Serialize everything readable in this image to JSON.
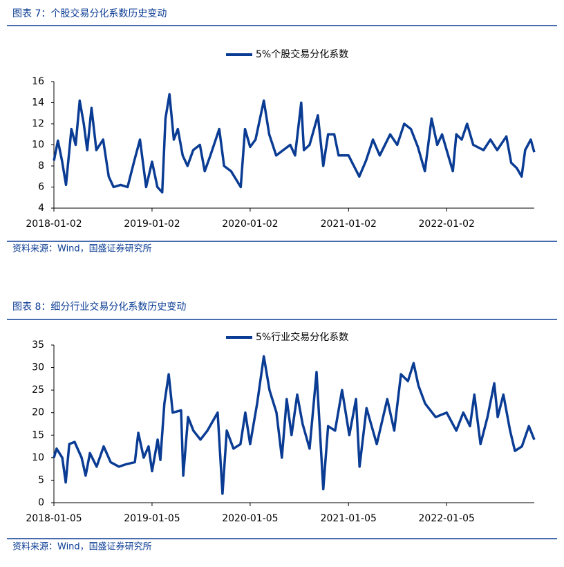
{
  "figures": [
    {
      "caption": "图表 7：个股交易分化系数历史变动",
      "source": "资料来源：Wind，国盛证券研究所"
    },
    {
      "caption": "图表 8：细分行业交易分化系数历史变动",
      "source": "资料来源：Wind，国盛证券研究所"
    }
  ],
  "chart_data": [
    {
      "type": "line",
      "x": [
        "2018-01-02",
        "2018-01-17",
        "2018-02-01",
        "2018-02-16",
        "2018-03-08",
        "2018-03-24",
        "2018-04-08",
        "2018-04-23",
        "2018-05-06",
        "2018-05-22",
        "2018-06-09",
        "2018-07-04",
        "2018-07-25",
        "2018-08-12",
        "2018-09-07",
        "2018-10-03",
        "2018-10-28",
        "2018-11-18",
        "2018-12-11",
        "2019-01-02",
        "2019-01-22",
        "2019-02-09",
        "2019-02-21",
        "2019-03-08",
        "2019-03-24",
        "2019-04-08",
        "2019-04-26",
        "2019-05-14",
        "2019-06-04",
        "2019-06-29",
        "2019-07-17",
        "2019-08-07",
        "2019-09-09",
        "2019-09-27",
        "2019-10-23",
        "2019-11-28",
        "2019-12-14",
        "2020-01-02",
        "2020-01-22",
        "2020-02-22",
        "2020-03-13",
        "2020-04-08",
        "2020-05-04",
        "2020-05-30",
        "2020-06-17",
        "2020-07-10",
        "2020-07-20",
        "2020-08-10",
        "2020-09-10",
        "2020-09-30",
        "2020-10-18",
        "2020-11-10",
        "2020-11-26",
        "2021-01-02",
        "2021-01-22",
        "2021-02-11",
        "2021-03-08",
        "2021-04-03",
        "2021-04-28",
        "2021-06-06",
        "2021-07-02",
        "2021-07-28",
        "2021-08-22",
        "2021-09-17",
        "2021-10-13",
        "2021-11-07",
        "2021-11-28",
        "2021-12-16",
        "2022-01-02",
        "2022-01-25",
        "2022-02-07",
        "2022-02-27",
        "2022-03-19",
        "2022-04-11",
        "2022-05-19",
        "2022-06-14",
        "2022-07-09",
        "2022-08-12",
        "2022-08-30",
        "2022-09-20",
        "2022-10-08",
        "2022-10-21",
        "2022-11-11",
        "2022-11-24"
      ],
      "series": [
        {
          "name": "5%个股交易分化系数",
          "color": "#0b3c94",
          "values": [
            8.5,
            10.4,
            8.5,
            6.2,
            11.5,
            10,
            14.2,
            12,
            9.5,
            13.5,
            9.5,
            10.5,
            7,
            6,
            6.2,
            6,
            8.5,
            10.5,
            6,
            8.4,
            6,
            5.5,
            12.5,
            14.8,
            10.5,
            11.5,
            9,
            8,
            9.5,
            10,
            7.5,
            9,
            11.5,
            8,
            7.5,
            6,
            11.5,
            9.8,
            10.5,
            14.2,
            11,
            9,
            9.5,
            10,
            9,
            14,
            9.5,
            10,
            12.8,
            8,
            11,
            11,
            9,
            9,
            8,
            7,
            8.5,
            10.5,
            9,
            11,
            10,
            12,
            11.5,
            9.8,
            7.5,
            12.5,
            10,
            11,
            9.5,
            7.5,
            11,
            10.5,
            12,
            10,
            9.5,
            10.5,
            9.5,
            10.8,
            8.3,
            7.8,
            7,
            9.5,
            10.5,
            9.3
          ]
        }
      ],
      "xlim": [
        "2018-01-02",
        "2022-11-24"
      ],
      "xticks": [
        "2018-01-02",
        "2019-01-02",
        "2020-01-02",
        "2021-01-02",
        "2022-01-02"
      ],
      "ylim": [
        4,
        16
      ],
      "yticks": [
        4,
        6,
        8,
        10,
        12,
        14,
        16
      ]
    },
    {
      "type": "line",
      "x": [
        "2018-01-05",
        "2018-01-15",
        "2018-02-05",
        "2018-02-18",
        "2018-03-03",
        "2018-03-23",
        "2018-04-18",
        "2018-05-03",
        "2018-05-19",
        "2018-06-13",
        "2018-07-09",
        "2018-08-04",
        "2018-09-04",
        "2018-09-29",
        "2018-11-02",
        "2018-11-15",
        "2018-12-05",
        "2018-12-23",
        "2019-01-05",
        "2019-01-26",
        "2019-02-05",
        "2019-02-20",
        "2019-03-08",
        "2019-03-23",
        "2019-04-23",
        "2019-05-01",
        "2019-05-19",
        "2019-06-08",
        "2019-07-04",
        "2019-07-30",
        "2019-09-06",
        "2019-09-24",
        "2019-10-10",
        "2019-11-04",
        "2019-11-30",
        "2019-12-18",
        "2020-01-05",
        "2020-01-31",
        "2020-02-25",
        "2020-03-17",
        "2020-04-12",
        "2020-05-02",
        "2020-05-20",
        "2020-06-07",
        "2020-06-28",
        "2020-07-18",
        "2020-08-13",
        "2020-09-08",
        "2020-10-03",
        "2020-10-21",
        "2020-11-16",
        "2020-12-12",
        "2021-01-08",
        "2021-02-02",
        "2021-02-15",
        "2021-03-13",
        "2021-04-20",
        "2021-05-29",
        "2021-06-24",
        "2021-07-19",
        "2021-08-14",
        "2021-09-04",
        "2021-09-22",
        "2021-10-17",
        "2021-11-25",
        "2022-01-05",
        "2022-02-10",
        "2022-03-08",
        "2022-04-02",
        "2022-04-18",
        "2022-05-11",
        "2022-06-06",
        "2022-07-01",
        "2022-07-14",
        "2022-08-04",
        "2022-08-29",
        "2022-09-16",
        "2022-10-12",
        "2022-11-07",
        "2022-11-27"
      ],
      "series": [
        {
          "name": "5%行业交易分化系数",
          "color": "#0b3c94",
          "values": [
            10,
            12,
            10,
            4.5,
            13,
            13.5,
            10,
            6,
            11,
            8,
            12.5,
            9,
            8,
            8.5,
            9,
            15.5,
            10,
            12.5,
            7,
            14,
            9.5,
            22,
            28.5,
            20,
            20.5,
            6,
            19,
            16,
            14,
            16,
            20,
            2,
            16,
            12,
            13,
            20,
            13,
            22,
            32.5,
            25,
            20,
            10,
            23,
            15,
            24,
            17.5,
            12,
            29,
            3,
            17,
            16,
            25,
            15,
            23,
            8,
            21,
            13,
            23,
            16,
            28.5,
            27,
            31,
            26,
            22,
            19,
            20,
            16,
            20,
            17,
            24,
            13,
            19,
            26.5,
            19,
            24,
            16,
            11.5,
            12.5,
            17,
            14
          ]
        }
      ],
      "xlim": [
        "2018-01-05",
        "2022-11-27"
      ],
      "xticks": [
        "2018-01-05",
        "2019-01-05",
        "2020-01-05",
        "2021-01-05",
        "2022-01-05"
      ],
      "ylim": [
        0,
        35
      ],
      "yticks": [
        0,
        5,
        10,
        15,
        20,
        25,
        30,
        35
      ]
    }
  ]
}
